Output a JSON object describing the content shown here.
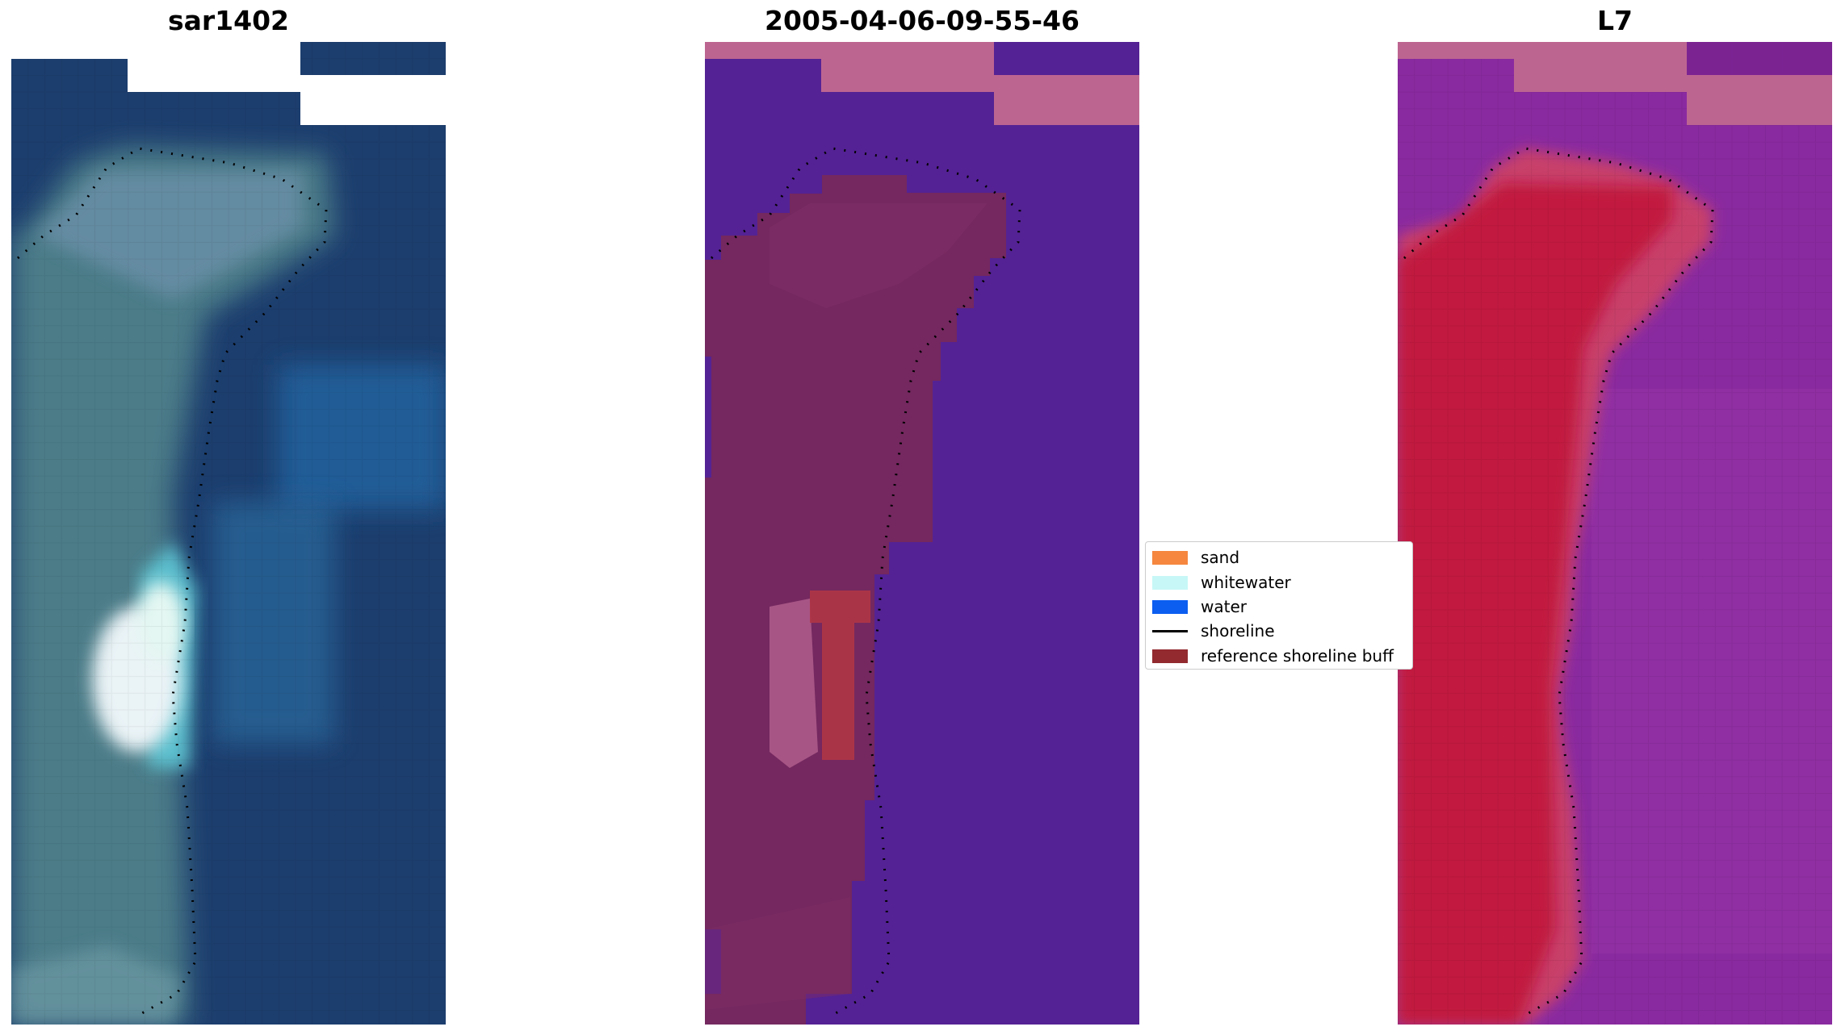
{
  "panels": [
    {
      "title": "sar1402",
      "type": "rgb-image"
    },
    {
      "title": "2005-04-06-09-55-46",
      "type": "classified-image"
    },
    {
      "title": "L7",
      "type": "index-image"
    }
  ],
  "legend": {
    "items": [
      {
        "label": "sand",
        "color": "#f5873f",
        "kind": "patch"
      },
      {
        "label": "whitewater",
        "color": "#c8f7f7",
        "kind": "patch"
      },
      {
        "label": "water",
        "color": "#0b5ef0",
        "kind": "patch"
      },
      {
        "label": "shoreline",
        "color": "#000000",
        "kind": "line"
      },
      {
        "label": "reference shoreline buff",
        "color": "#922a2f",
        "kind": "patch"
      }
    ]
  },
  "colors": {
    "sar_deep": "#1c3e6e",
    "sar_sand": "#4e7f8a",
    "sar_bright": "#eaf3f6",
    "class_water": "#542294",
    "class_buffer": "#74285f",
    "class_nodata": "#bd6591",
    "index_low": "#8a2aa0",
    "index_high": "#c00832"
  }
}
